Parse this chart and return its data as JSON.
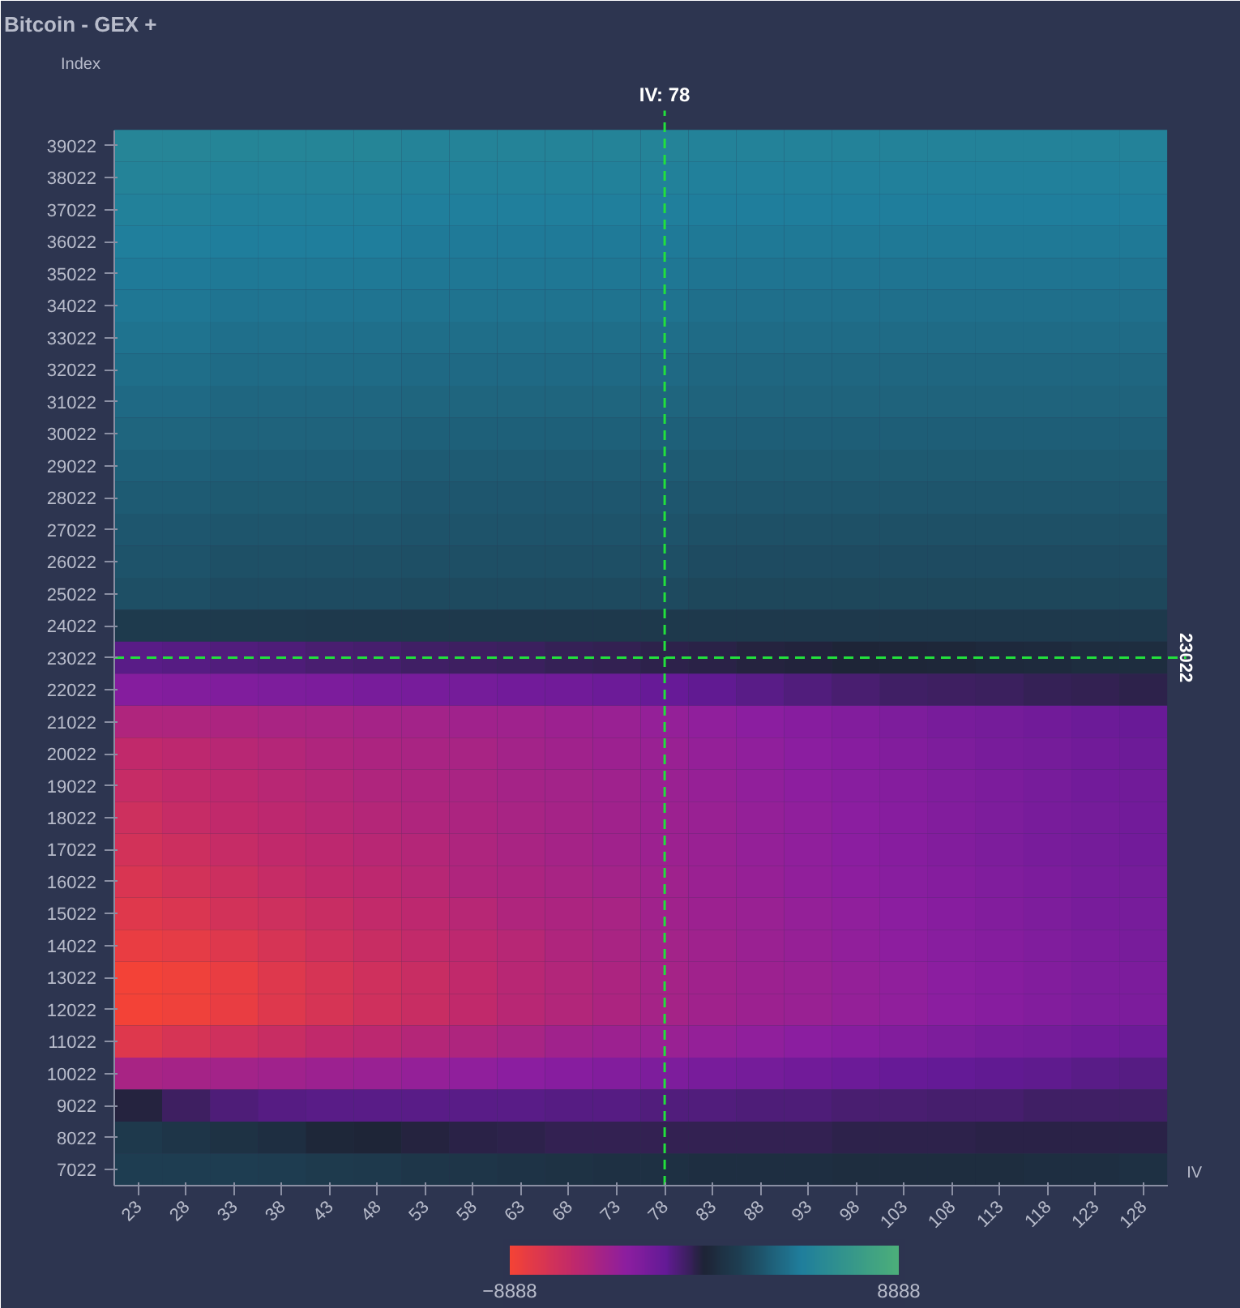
{
  "chart_data": {
    "type": "heatmap",
    "title": "Bitcoin - GEX +",
    "ylabel": "Index",
    "xlabel": "IV",
    "categories": [
      "23",
      "28",
      "33",
      "38",
      "43",
      "48",
      "53",
      "58",
      "63",
      "68",
      "73",
      "78",
      "83",
      "88",
      "93",
      "98",
      "103",
      "108",
      "113",
      "118",
      "123",
      "128"
    ],
    "y_categories": [
      "39022",
      "38022",
      "37022",
      "36022",
      "35022",
      "34022",
      "33022",
      "32022",
      "31022",
      "30022",
      "29022",
      "28022",
      "27022",
      "26022",
      "25022",
      "24022",
      "23022",
      "22022",
      "21022",
      "20022",
      "19022",
      "18022",
      "17022",
      "16022",
      "15022",
      "14022",
      "13022",
      "12022",
      "11022",
      "10022",
      "9022",
      "8022",
      "7022"
    ],
    "cells": [
      [
        5100,
        5100,
        5000,
        5000,
        5000,
        5000,
        4900,
        4900,
        4900,
        4900,
        4900,
        4900,
        4800,
        4800,
        4800,
        4800,
        4800,
        4800,
        4800,
        4800,
        4800,
        4800
      ],
      [
        4900,
        4900,
        4800,
        4800,
        4800,
        4800,
        4700,
        4700,
        4700,
        4700,
        4700,
        4700,
        4600,
        4600,
        4600,
        4600,
        4600,
        4600,
        4600,
        4600,
        4600,
        4600
      ],
      [
        4700,
        4700,
        4600,
        4600,
        4600,
        4600,
        4500,
        4500,
        4500,
        4500,
        4500,
        4500,
        4400,
        4400,
        4400,
        4400,
        4400,
        4400,
        4400,
        4400,
        4400,
        4400
      ],
      [
        4500,
        4500,
        4400,
        4400,
        4400,
        4400,
        4300,
        4300,
        4300,
        4300,
        4300,
        4300,
        4200,
        4200,
        4200,
        4200,
        4200,
        4200,
        4200,
        4200,
        4200,
        4200
      ],
      [
        4300,
        4300,
        4200,
        4200,
        4200,
        4200,
        4100,
        4100,
        4100,
        4100,
        4100,
        4100,
        4000,
        4000,
        4000,
        4000,
        4000,
        4000,
        4000,
        4000,
        4000,
        4000
      ],
      [
        4100,
        4100,
        4000,
        4000,
        4000,
        4000,
        3900,
        3900,
        3900,
        3900,
        3900,
        3900,
        3800,
        3800,
        3800,
        3800,
        3800,
        3800,
        3800,
        3800,
        3800,
        3800
      ],
      [
        3900,
        3900,
        3800,
        3800,
        3800,
        3800,
        3700,
        3700,
        3700,
        3700,
        3700,
        3700,
        3600,
        3600,
        3600,
        3600,
        3600,
        3600,
        3600,
        3600,
        3600,
        3600
      ],
      [
        3700,
        3700,
        3600,
        3600,
        3600,
        3600,
        3500,
        3500,
        3500,
        3500,
        3500,
        3500,
        3400,
        3400,
        3400,
        3400,
        3400,
        3400,
        3400,
        3400,
        3400,
        3400
      ],
      [
        3500,
        3500,
        3400,
        3400,
        3400,
        3400,
        3300,
        3300,
        3300,
        3300,
        3300,
        3300,
        3200,
        3200,
        3200,
        3200,
        3200,
        3200,
        3200,
        3200,
        3200,
        3200
      ],
      [
        3300,
        3300,
        3200,
        3200,
        3200,
        3200,
        3100,
        3100,
        3100,
        3100,
        3100,
        3100,
        3000,
        3000,
        3000,
        3000,
        3000,
        3000,
        3000,
        3000,
        3000,
        3000
      ],
      [
        3100,
        3100,
        3000,
        3000,
        3000,
        3000,
        2900,
        2900,
        2900,
        2900,
        2900,
        2900,
        2800,
        2800,
        2800,
        2800,
        2800,
        2800,
        2800,
        2800,
        2800,
        2800
      ],
      [
        2900,
        2900,
        2800,
        2800,
        2800,
        2800,
        2700,
        2700,
        2700,
        2700,
        2700,
        2700,
        2600,
        2600,
        2600,
        2600,
        2600,
        2600,
        2600,
        2600,
        2600,
        2600
      ],
      [
        2700,
        2700,
        2600,
        2600,
        2600,
        2600,
        2500,
        2500,
        2500,
        2500,
        2500,
        2500,
        2400,
        2400,
        2400,
        2400,
        2400,
        2400,
        2400,
        2400,
        2400,
        2400
      ],
      [
        2500,
        2500,
        2400,
        2400,
        2400,
        2400,
        2300,
        2300,
        2300,
        2300,
        2300,
        2300,
        2200,
        2200,
        2200,
        2200,
        2200,
        2200,
        2200,
        2200,
        2200,
        2200
      ],
      [
        2300,
        2300,
        2200,
        2200,
        2200,
        2200,
        2100,
        2100,
        2100,
        2100,
        2100,
        2100,
        2000,
        2000,
        2000,
        2000,
        2000,
        2000,
        2000,
        2000,
        2000,
        2000
      ],
      [
        1300,
        1300,
        1300,
        1300,
        1200,
        1200,
        1200,
        1200,
        1200,
        1200,
        1200,
        1200,
        1200,
        1200,
        1200,
        1200,
        1200,
        1200,
        1200,
        1200,
        1200,
        1200
      ],
      [
        -1500,
        -1400,
        -1300,
        -1200,
        -1100,
        -1000,
        -900,
        -800,
        -700,
        -600,
        -500,
        -400,
        -300,
        -200,
        -100,
        0,
        100,
        200,
        300,
        400,
        500,
        500
      ],
      [
        -3200,
        -3100,
        -3000,
        -2900,
        -2800,
        -2700,
        -2600,
        -2500,
        -2400,
        -2300,
        -2100,
        -1900,
        -1700,
        -1500,
        -1300,
        -1100,
        -900,
        -800,
        -700,
        -600,
        -500,
        -400
      ],
      [
        -5200,
        -5100,
        -5000,
        -4900,
        -4800,
        -4700,
        -4600,
        -4500,
        -4400,
        -4300,
        -4100,
        -3900,
        -3700,
        -3500,
        -3300,
        -3100,
        -2900,
        -2700,
        -2500,
        -2300,
        -2100,
        -2000
      ],
      [
        -6000,
        -5800,
        -5600,
        -5400,
        -5200,
        -5000,
        -4900,
        -4800,
        -4600,
        -4500,
        -4300,
        -4100,
        -3900,
        -3700,
        -3500,
        -3300,
        -3100,
        -2900,
        -2700,
        -2500,
        -2300,
        -2200
      ],
      [
        -6300,
        -6000,
        -5800,
        -5600,
        -5400,
        -5200,
        -5000,
        -4900,
        -4700,
        -4600,
        -4400,
        -4200,
        -4000,
        -3800,
        -3600,
        -3400,
        -3200,
        -3000,
        -2800,
        -2600,
        -2400,
        -2300
      ],
      [
        -6700,
        -6300,
        -6000,
        -5800,
        -5600,
        -5400,
        -5200,
        -5000,
        -4800,
        -4700,
        -4500,
        -4300,
        -4100,
        -3900,
        -3700,
        -3500,
        -3300,
        -3100,
        -2900,
        -2700,
        -2500,
        -2400
      ],
      [
        -7000,
        -6600,
        -6300,
        -6000,
        -5800,
        -5600,
        -5400,
        -5100,
        -4900,
        -4700,
        -4500,
        -4300,
        -4100,
        -3900,
        -3700,
        -3500,
        -3300,
        -3100,
        -2900,
        -2700,
        -2500,
        -2400
      ],
      [
        -7300,
        -7000,
        -6600,
        -6300,
        -6000,
        -5800,
        -5500,
        -5200,
        -5000,
        -4800,
        -4600,
        -4400,
        -4200,
        -4000,
        -3800,
        -3600,
        -3400,
        -3200,
        -3000,
        -2800,
        -2600,
        -2500
      ],
      [
        -7700,
        -7400,
        -7000,
        -6700,
        -6400,
        -6100,
        -5800,
        -5500,
        -5200,
        -5000,
        -4800,
        -4500,
        -4300,
        -4100,
        -3900,
        -3700,
        -3500,
        -3300,
        -3100,
        -2900,
        -2700,
        -2600
      ],
      [
        -8200,
        -8000,
        -7600,
        -7200,
        -6800,
        -6400,
        -6100,
        -5800,
        -5500,
        -5200,
        -4900,
        -4600,
        -4400,
        -4200,
        -4000,
        -3800,
        -3600,
        -3400,
        -3200,
        -3000,
        -2800,
        -2700
      ],
      [
        -8800,
        -8600,
        -8200,
        -7600,
        -7200,
        -6800,
        -6400,
        -6000,
        -5600,
        -5300,
        -5000,
        -4700,
        -4500,
        -4300,
        -4100,
        -3900,
        -3700,
        -3500,
        -3300,
        -3100,
        -2900,
        -2800
      ],
      [
        -8800,
        -8600,
        -8200,
        -7600,
        -7200,
        -6800,
        -6400,
        -6000,
        -5600,
        -5300,
        -5000,
        -4700,
        -4500,
        -4300,
        -4100,
        -3900,
        -3700,
        -3500,
        -3300,
        -3100,
        -2900,
        -2800
      ],
      [
        -7600,
        -7200,
        -6800,
        -6400,
        -6000,
        -5700,
        -5400,
        -5100,
        -4800,
        -4500,
        -4300,
        -4100,
        -3900,
        -3700,
        -3500,
        -3300,
        -3100,
        -2900,
        -2700,
        -2500,
        -2300,
        -2200
      ],
      [
        -4800,
        -4700,
        -4600,
        -4500,
        -4300,
        -4100,
        -3900,
        -3700,
        -3500,
        -3300,
        -3100,
        -2900,
        -2700,
        -2500,
        -2300,
        -2100,
        -1900,
        -1800,
        -1700,
        -1600,
        -1500,
        -1400
      ],
      [
        -200,
        -800,
        -1200,
        -1400,
        -1500,
        -1500,
        -1500,
        -1500,
        -1500,
        -1400,
        -1400,
        -1300,
        -1300,
        -1200,
        -1200,
        -1100,
        -1100,
        -1000,
        -1000,
        -900,
        -900,
        -900
      ],
      [
        1200,
        1000,
        800,
        600,
        200,
        0,
        -200,
        -300,
        -400,
        -500,
        -500,
        -500,
        -500,
        -500,
        -500,
        -400,
        -400,
        -400,
        -300,
        -300,
        -300,
        -300
      ],
      [
        1500,
        1500,
        1500,
        1400,
        1300,
        1200,
        1100,
        1000,
        900,
        800,
        700,
        700,
        600,
        600,
        600,
        500,
        500,
        500,
        500,
        600,
        600,
        700
      ]
    ],
    "clim": [
      -8888,
      8888
    ],
    "cticks": [
      -8888,
      8888
    ],
    "ref_lines": [
      {
        "axis": "x",
        "value": "78",
        "label": "IV: 78",
        "color": "#22e03c",
        "line_style": "dashed"
      },
      {
        "axis": "y",
        "value": "23022",
        "label": "23022",
        "color": "#22e03c",
        "line_style": "dashed"
      }
    ],
    "grid": false
  }
}
